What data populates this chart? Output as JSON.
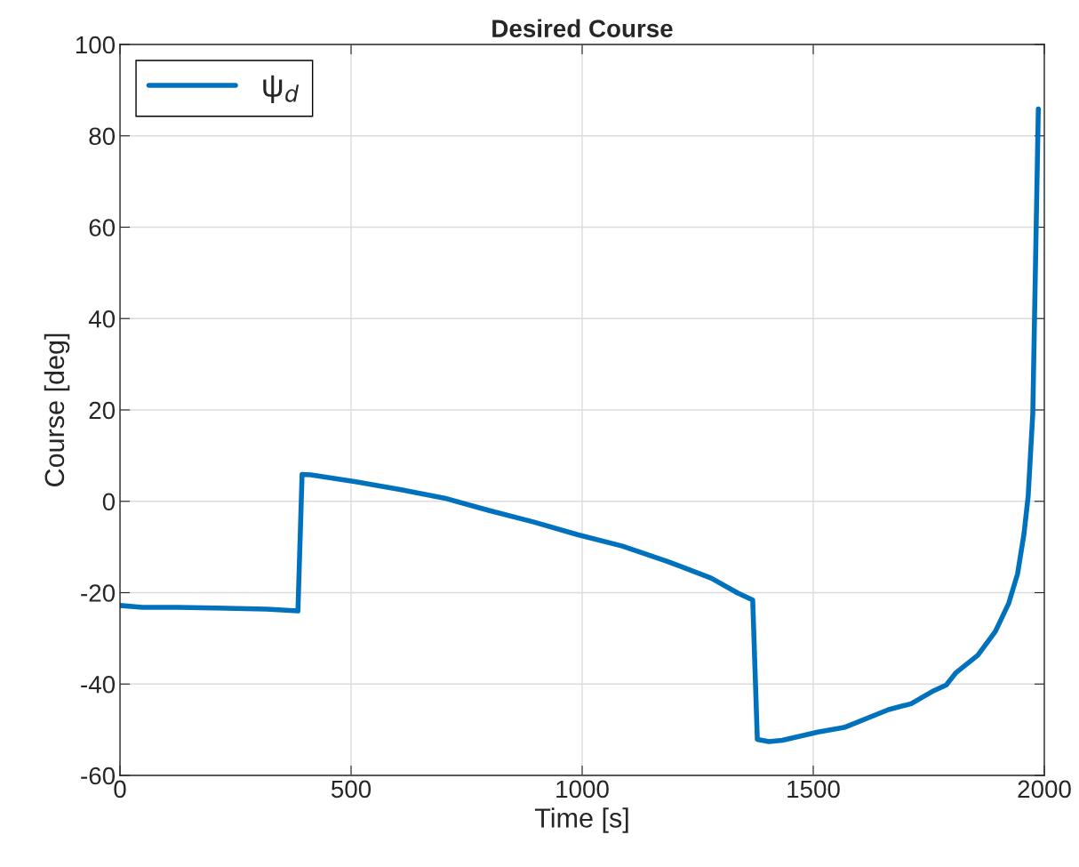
{
  "chart_data": {
    "type": "line",
    "title": "Desired Course",
    "xlabel": "Time [s]",
    "ylabel": "Course [deg]",
    "xlim": [
      0,
      2000
    ],
    "xticks": [
      0,
      500,
      1000,
      1500,
      2000
    ],
    "ylim": [
      -60,
      100
    ],
    "yticks": [
      -60,
      -40,
      -20,
      0,
      20,
      40,
      60,
      80,
      100
    ],
    "grid": true,
    "legend": "top left",
    "series": [
      {
        "name": "ψ$_{d}$",
        "color": "#0072bd",
        "x": [
          0,
          48,
          125,
          317,
          385,
          394,
          413,
          510,
          606,
          702,
          798,
          894,
          990,
          1087,
          1183,
          1279,
          1337,
          1369,
          1379,
          1404,
          1433,
          1510,
          1567,
          1663,
          1712,
          1760,
          1788,
          1808,
          1856,
          1894,
          1923,
          1942,
          1956,
          1965,
          1975,
          1987
        ],
        "values": [
          -22.8,
          -23.2,
          -23.2,
          -23.6,
          -24.0,
          5.9,
          5.8,
          4.3,
          2.6,
          0.7,
          -2.0,
          -4.5,
          -7.3,
          -9.8,
          -13.1,
          -16.8,
          -20.1,
          -21.6,
          -52.1,
          -52.6,
          -52.3,
          -50.5,
          -49.5,
          -45.6,
          -44.3,
          -41.5,
          -40.2,
          -37.6,
          -33.7,
          -28.5,
          -22.3,
          -15.9,
          -7.1,
          1.1,
          19.2,
          85.9
        ]
      }
    ]
  }
}
